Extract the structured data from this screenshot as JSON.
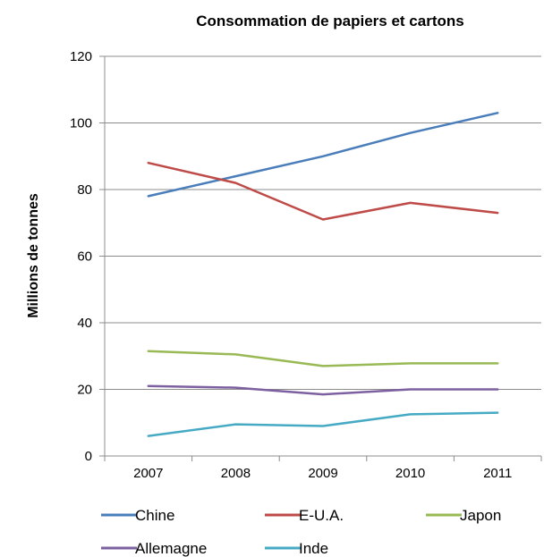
{
  "chart_data": {
    "type": "line",
    "title": "Consommation de papiers et cartons",
    "xlabel": "",
    "ylabel": "Millions de tonnes",
    "categories": [
      "2007",
      "2008",
      "2009",
      "2010",
      "2011"
    ],
    "ylim": [
      0,
      120
    ],
    "yticks": [
      0,
      20,
      40,
      60,
      80,
      100,
      120
    ],
    "grid": true,
    "legend": "bottom",
    "series": [
      {
        "name": "Chine",
        "color": "#4a7ebb",
        "values": [
          78,
          84,
          90,
          97,
          103
        ]
      },
      {
        "name": "E-U.A.",
        "color": "#be4b48",
        "values": [
          88,
          82,
          71,
          76,
          73
        ]
      },
      {
        "name": "Japon",
        "color": "#98b954",
        "values": [
          31.5,
          30.5,
          27,
          27.8,
          27.8
        ]
      },
      {
        "name": "Allemagne",
        "color": "#7d60a0",
        "values": [
          21,
          20.5,
          18.5,
          20,
          20
        ]
      },
      {
        "name": "Inde",
        "color": "#46aac5",
        "values": [
          6,
          9.5,
          9,
          12.5,
          13
        ]
      }
    ]
  }
}
